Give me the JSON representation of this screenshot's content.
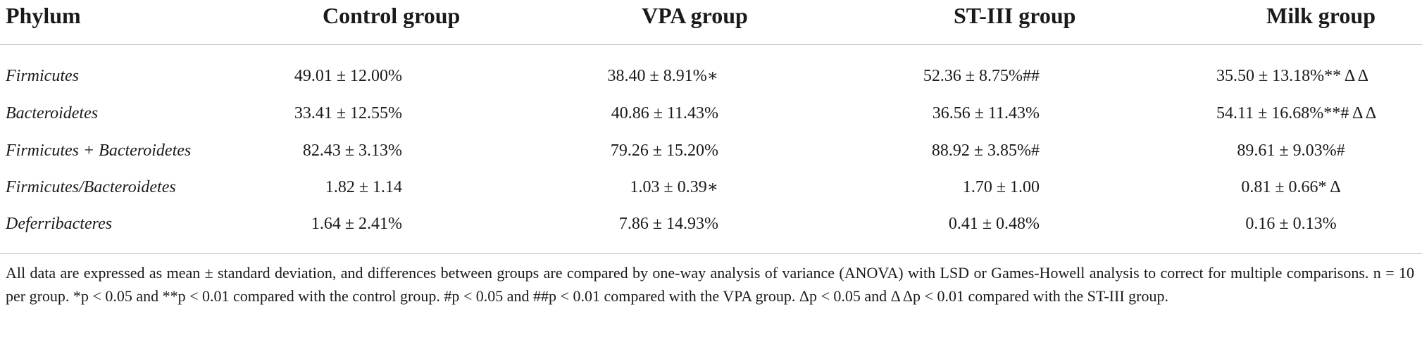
{
  "table": {
    "headers": [
      "Phylum",
      "Control group",
      "VPA group",
      "ST-III group",
      "Milk group"
    ],
    "rows": [
      {
        "phylum": "Firmicutes",
        "control": "49.01 ± 12.00%",
        "vpa": "38.40 ± 8.91%∗",
        "st3": "52.36 ± 8.75%##",
        "milk": "35.50 ± 13.18%** Δ Δ"
      },
      {
        "phylum": "Bacteroidetes",
        "control": "33.41 ± 12.55%",
        "vpa": "40.86 ± 11.43%",
        "st3": "36.56 ± 11.43%",
        "milk": "54.11 ± 16.68%**# Δ Δ"
      },
      {
        "phylum": "Firmicutes + Bacteroidetes",
        "control": "82.43 ± 3.13%",
        "vpa": "79.26 ± 15.20%",
        "st3": "88.92 ± 3.85%#",
        "milk": "89.61 ± 9.03%#"
      },
      {
        "phylum": "Firmicutes/Bacteroidetes",
        "control": "1.82 ± 1.14",
        "vpa": "1.03 ± 0.39∗",
        "st3": "1.70 ± 1.00",
        "milk": "0.81 ± 0.66* Δ"
      },
      {
        "phylum": "Deferribacteres",
        "control": "1.64 ± 2.41%",
        "vpa": "7.86 ± 14.93%",
        "st3": "0.41 ± 0.48%",
        "milk": "0.16 ± 0.13%"
      }
    ],
    "footnote": "All data are expressed as mean ± standard deviation, and differences between groups are compared by one-way analysis of variance (ANOVA) with LSD or Games-Howell analysis to correct for multiple comparisons. n = 10 per group. *p < 0.05 and **p < 0.01 compared with the control group. #p < 0.05 and ##p < 0.01 compared with the VPA group. Δp < 0.05 and Δ Δp < 0.01 compared with the ST-III group."
  }
}
